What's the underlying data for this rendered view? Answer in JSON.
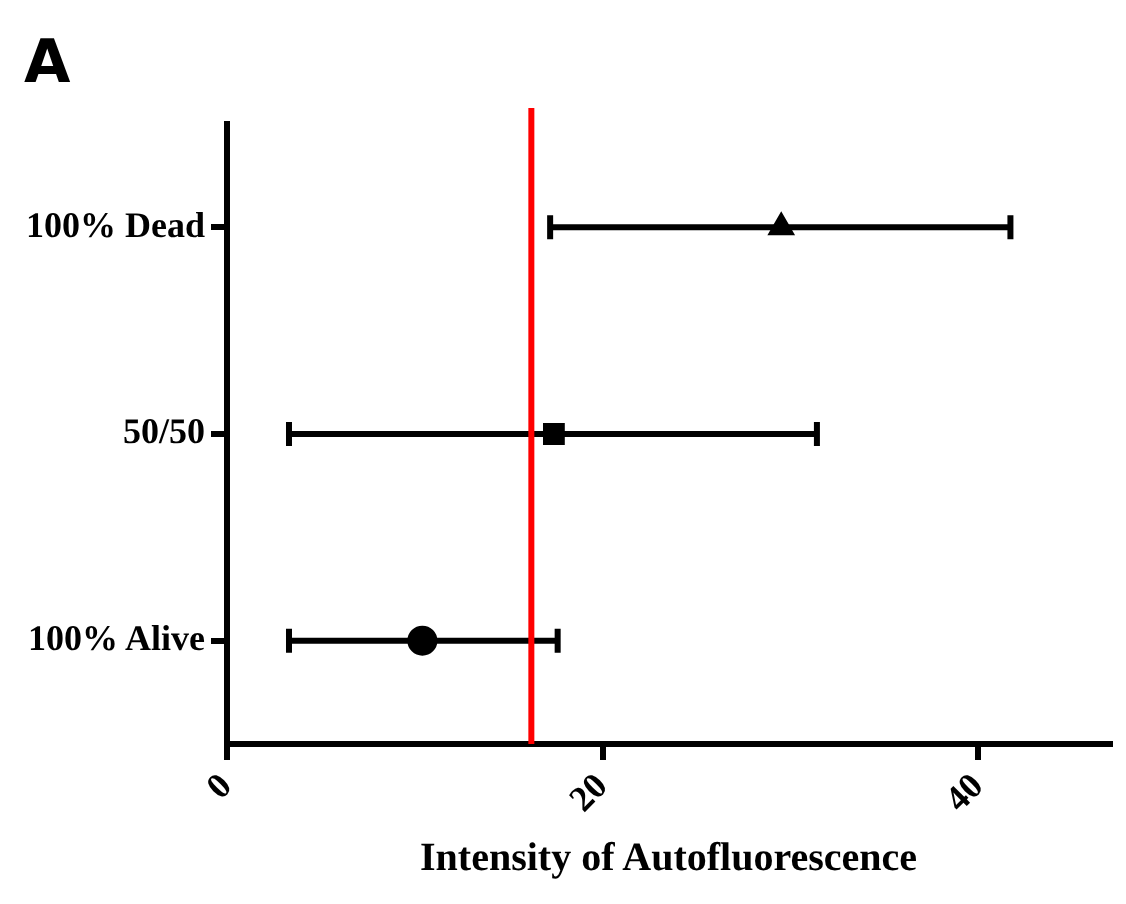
{
  "chart_data": {
    "type": "scatter",
    "orientation": "horizontal",
    "xlabel": "Intensity of Autofluorescence",
    "annotations": [
      "A"
    ],
    "categories": [
      "100% Dead",
      "50/50",
      "100% Alive"
    ],
    "xlim": [
      0,
      47
    ],
    "xticks": [
      0,
      20,
      40
    ],
    "grid": false,
    "series": [
      {
        "color": "#000000",
        "marker": "triangle",
        "values": [
          29.5,
          null,
          null
        ],
        "errors": [
          [
            17.2,
            41.7
          ],
          null,
          null
        ]
      },
      {
        "color": "#000000",
        "marker": "square",
        "values": [
          null,
          17.4,
          null
        ],
        "errors": [
          null,
          [
            3.3,
            31.4
          ],
          null
        ]
      },
      {
        "color": "#000000",
        "marker": "circle",
        "values": [
          null,
          null,
          10.4
        ],
        "errors": [
          null,
          null,
          [
            3.3,
            17.6
          ]
        ]
      }
    ],
    "ref_lines": [
      {
        "axis": "x",
        "value": 16.2,
        "color": "#ff0000"
      }
    ]
  }
}
